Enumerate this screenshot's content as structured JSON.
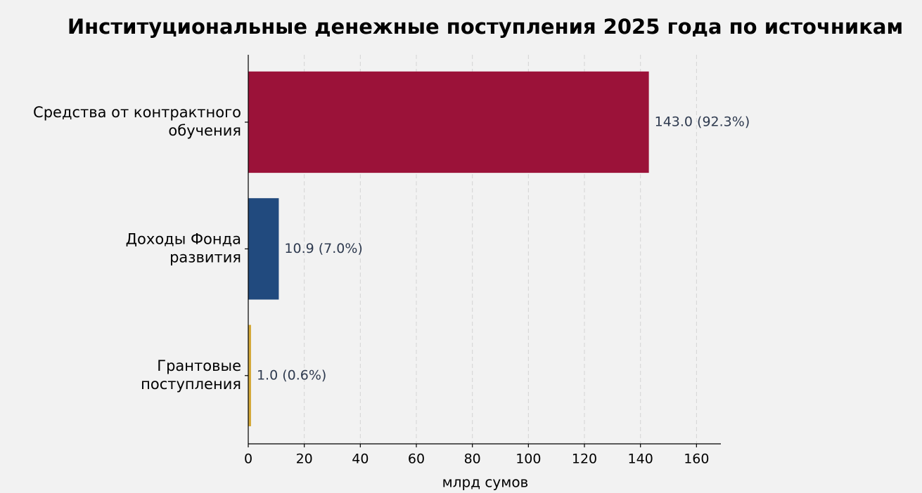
{
  "chart_data": {
    "type": "barh",
    "title": "Институциональные денежные поступления 2025 года по источникам",
    "xlabel": "млрд сумов",
    "categories": [
      "Средства от контрактного\nобучения",
      "Доходы Фонда\nразвития",
      "Грантовые\nпоступления"
    ],
    "values": [
      143.0,
      10.9,
      1.0
    ],
    "value_labels": [
      "143.0 (92.3%)",
      "10.9 (7.0%)",
      "1.0 (0.6%)"
    ],
    "colors": [
      "#9b1239",
      "#214a7e",
      "#d4a93a"
    ],
    "xlim": [
      0,
      168.7
    ],
    "xticks": [
      0,
      20,
      40,
      60,
      80,
      100,
      120,
      140,
      160
    ],
    "grid": true
  }
}
